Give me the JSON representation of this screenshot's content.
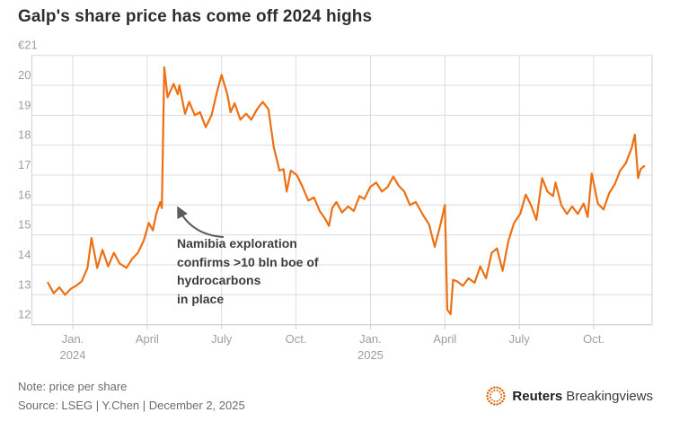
{
  "header": {
    "title": "Galp's share price has come off 2024 highs"
  },
  "chart_data": {
    "type": "line",
    "title": "Galp's share price has come off 2024 highs",
    "unit": "EUR per share",
    "ylim": [
      12,
      21
    ],
    "grid": "on",
    "y_ticks": [
      12,
      13,
      14,
      15,
      16,
      17,
      18,
      19,
      20,
      21
    ],
    "y_top_label": "€21",
    "x_ticks": [
      {
        "date": "2024-01-01",
        "label": "Jan.",
        "sublabel": "2024"
      },
      {
        "date": "2024-04-01",
        "label": "April",
        "sublabel": ""
      },
      {
        "date": "2024-07-01",
        "label": "July",
        "sublabel": ""
      },
      {
        "date": "2024-10-01",
        "label": "Oct.",
        "sublabel": ""
      },
      {
        "date": "2025-01-01",
        "label": "Jan.",
        "sublabel": "2025"
      },
      {
        "date": "2025-04-01",
        "label": "April",
        "sublabel": ""
      },
      {
        "date": "2025-07-01",
        "label": "July",
        "sublabel": ""
      },
      {
        "date": "2025-10-01",
        "label": "Oct.",
        "sublabel": ""
      }
    ],
    "series": [
      {
        "name": "Galp share price (EUR)",
        "points": [
          [
            "2023-12-01",
            13.4
          ],
          [
            "2023-12-08",
            13.05
          ],
          [
            "2023-12-15",
            13.25
          ],
          [
            "2023-12-22",
            13.0
          ],
          [
            "2023-12-29",
            13.2
          ],
          [
            "2024-01-05",
            13.3
          ],
          [
            "2024-01-12",
            13.45
          ],
          [
            "2024-01-19",
            13.9
          ],
          [
            "2024-01-24",
            14.9
          ],
          [
            "2024-01-31",
            13.9
          ],
          [
            "2024-02-07",
            14.5
          ],
          [
            "2024-02-14",
            13.95
          ],
          [
            "2024-02-21",
            14.4
          ],
          [
            "2024-02-28",
            14.05
          ],
          [
            "2024-03-06",
            13.9
          ],
          [
            "2024-03-13",
            14.2
          ],
          [
            "2024-03-20",
            14.4
          ],
          [
            "2024-03-27",
            14.8
          ],
          [
            "2024-04-03",
            15.4
          ],
          [
            "2024-04-08",
            15.15
          ],
          [
            "2024-04-12",
            15.7
          ],
          [
            "2024-04-17",
            16.1
          ],
          [
            "2024-04-19",
            15.9
          ],
          [
            "2024-04-22",
            20.6
          ],
          [
            "2024-04-26",
            19.6
          ],
          [
            "2024-05-03",
            20.05
          ],
          [
            "2024-05-08",
            19.7
          ],
          [
            "2024-05-10",
            20.0
          ],
          [
            "2024-05-17",
            19.05
          ],
          [
            "2024-05-22",
            19.45
          ],
          [
            "2024-05-29",
            19.0
          ],
          [
            "2024-06-05",
            19.1
          ],
          [
            "2024-06-12",
            18.6
          ],
          [
            "2024-06-19",
            19.0
          ],
          [
            "2024-06-26",
            19.8
          ],
          [
            "2024-07-01",
            20.35
          ],
          [
            "2024-07-08",
            19.7
          ],
          [
            "2024-07-12",
            19.1
          ],
          [
            "2024-07-17",
            19.4
          ],
          [
            "2024-07-24",
            18.85
          ],
          [
            "2024-07-31",
            19.05
          ],
          [
            "2024-08-07",
            18.85
          ],
          [
            "2024-08-14",
            19.2
          ],
          [
            "2024-08-21",
            19.45
          ],
          [
            "2024-08-28",
            19.2
          ],
          [
            "2024-09-04",
            17.95
          ],
          [
            "2024-09-11",
            17.15
          ],
          [
            "2024-09-16",
            17.2
          ],
          [
            "2024-09-20",
            16.45
          ],
          [
            "2024-09-25",
            17.15
          ],
          [
            "2024-10-02",
            17.0
          ],
          [
            "2024-10-09",
            16.6
          ],
          [
            "2024-10-16",
            16.15
          ],
          [
            "2024-10-23",
            16.25
          ],
          [
            "2024-10-30",
            15.8
          ],
          [
            "2024-11-06",
            15.55
          ],
          [
            "2024-11-11",
            15.3
          ],
          [
            "2024-11-15",
            15.9
          ],
          [
            "2024-11-20",
            16.1
          ],
          [
            "2024-11-27",
            15.75
          ],
          [
            "2024-12-04",
            15.95
          ],
          [
            "2024-12-11",
            15.8
          ],
          [
            "2024-12-18",
            16.3
          ],
          [
            "2024-12-24",
            16.2
          ],
          [
            "2024-12-31",
            16.6
          ],
          [
            "2025-01-08",
            16.75
          ],
          [
            "2025-01-15",
            16.45
          ],
          [
            "2025-01-22",
            16.6
          ],
          [
            "2025-01-29",
            16.95
          ],
          [
            "2025-02-05",
            16.65
          ],
          [
            "2025-02-12",
            16.45
          ],
          [
            "2025-02-19",
            16.0
          ],
          [
            "2025-02-26",
            16.1
          ],
          [
            "2025-03-05",
            15.65
          ],
          [
            "2025-03-12",
            15.35
          ],
          [
            "2025-03-19",
            14.6
          ],
          [
            "2025-03-26",
            15.35
          ],
          [
            "2025-04-01",
            16.0
          ],
          [
            "2025-04-04",
            12.5
          ],
          [
            "2025-04-08",
            12.35
          ],
          [
            "2025-04-11",
            13.5
          ],
          [
            "2025-04-16",
            13.45
          ],
          [
            "2025-04-23",
            13.3
          ],
          [
            "2025-04-30",
            13.55
          ],
          [
            "2025-05-07",
            13.4
          ],
          [
            "2025-05-14",
            13.95
          ],
          [
            "2025-05-21",
            13.55
          ],
          [
            "2025-05-28",
            14.4
          ],
          [
            "2025-06-04",
            14.55
          ],
          [
            "2025-06-11",
            13.8
          ],
          [
            "2025-06-18",
            14.8
          ],
          [
            "2025-06-25",
            15.4
          ],
          [
            "2025-07-02",
            15.7
          ],
          [
            "2025-07-09",
            16.35
          ],
          [
            "2025-07-16",
            15.95
          ],
          [
            "2025-07-22",
            15.5
          ],
          [
            "2025-07-29",
            16.9
          ],
          [
            "2025-08-05",
            16.45
          ],
          [
            "2025-08-12",
            16.3
          ],
          [
            "2025-08-15",
            16.75
          ],
          [
            "2025-08-22",
            16.0
          ],
          [
            "2025-08-29",
            15.7
          ],
          [
            "2025-09-05",
            15.95
          ],
          [
            "2025-09-12",
            15.7
          ],
          [
            "2025-09-19",
            16.05
          ],
          [
            "2025-09-24",
            15.6
          ],
          [
            "2025-09-29",
            17.05
          ],
          [
            "2025-10-06",
            16.05
          ],
          [
            "2025-10-13",
            15.85
          ],
          [
            "2025-10-20",
            16.4
          ],
          [
            "2025-10-27",
            16.7
          ],
          [
            "2025-11-03",
            17.15
          ],
          [
            "2025-11-10",
            17.4
          ],
          [
            "2025-11-17",
            17.9
          ],
          [
            "2025-11-21",
            18.35
          ],
          [
            "2025-11-25",
            16.9
          ],
          [
            "2025-11-28",
            17.2
          ],
          [
            "2025-12-02",
            17.3
          ]
        ]
      }
    ],
    "annotation": {
      "text": "Namibia exploration\nconfirms >10 bln boe of\nhydrocarbons\nin place"
    }
  },
  "footer": {
    "note": "Note: price per share",
    "source": "Source: LSEG | Y.Chen | December 2, 2025",
    "brand": {
      "bold": "Reuters",
      "regular": "Breakingviews"
    }
  },
  "colors": {
    "line": "#ED7014",
    "grid": "#dcdcdc",
    "border": "#cfcfcf",
    "axis_text": "#9e9e9e",
    "title_text": "#2e2e2e",
    "annotation_text": "#3d3d3d",
    "arrow": "#5c5c5c",
    "footer_text": "#6b6b6b",
    "logo_orange": "#d96b15"
  }
}
